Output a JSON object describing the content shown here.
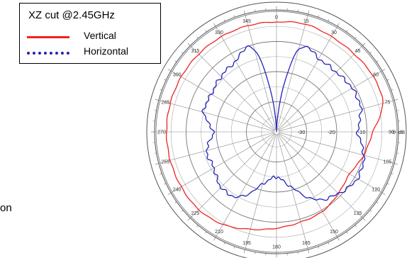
{
  "legend": {
    "title": "XZ cut @2.45GHz",
    "entries": [
      {
        "label": "Vertical",
        "color": "#ee2222",
        "style": "solid"
      },
      {
        "label": "Horizontal",
        "color": "#2222bb",
        "style": "dotted"
      }
    ]
  },
  "stray_text": "on",
  "chart_data": {
    "type": "polar-line",
    "angle_unit": "degrees",
    "angle_direction": "clockwise from top (0 at top)",
    "angle_ticks": [
      0,
      15,
      30,
      45,
      60,
      75,
      90,
      105,
      120,
      135,
      150,
      165,
      180,
      195,
      210,
      225,
      240,
      255,
      270,
      285,
      300,
      315,
      330,
      345
    ],
    "radial_unit": "dB",
    "radial_range": [
      -40,
      0
    ],
    "radial_ring_labels": [
      "-30",
      "-20",
      "-10",
      "0"
    ],
    "radial_unit_label": "dB",
    "grid": true,
    "series": [
      {
        "name": "Vertical",
        "color": "#ee2222",
        "angles": [
          0,
          15,
          30,
          45,
          60,
          75,
          90,
          105,
          120,
          135,
          150,
          165,
          180,
          195,
          210,
          225,
          240,
          255,
          270,
          285,
          300,
          315,
          330,
          345
        ],
        "values_db": [
          -3.5,
          -3.0,
          -3.5,
          -3.5,
          -3.0,
          -3.5,
          -8.0,
          -10.0,
          -12.0,
          -11.0,
          -9.5,
          -9.0,
          -8.0,
          -6.5,
          -4.5,
          -3.5,
          -3.5,
          -3.5,
          -3.5,
          -3.5,
          -3.5,
          -3.5,
          -3.5,
          -3.5
        ]
      },
      {
        "name": "Horizontal",
        "color": "#2222bb",
        "angles": [
          0,
          15,
          30,
          45,
          60,
          75,
          90,
          105,
          120,
          135,
          150,
          165,
          180,
          195,
          210,
          225,
          240,
          255,
          270,
          285,
          300,
          315,
          330,
          345
        ],
        "values_db": [
          -40.0,
          -12.0,
          -12.0,
          -12.0,
          -11.0,
          -11.0,
          -13.0,
          -10.0,
          -9.0,
          -11.0,
          -14.0,
          -21.0,
          -25.0,
          -22.0,
          -15.0,
          -14.0,
          -16.0,
          -16.0,
          -19.0,
          -15.0,
          -15.0,
          -14.0,
          -13.0,
          -12.0
        ]
      }
    ]
  }
}
